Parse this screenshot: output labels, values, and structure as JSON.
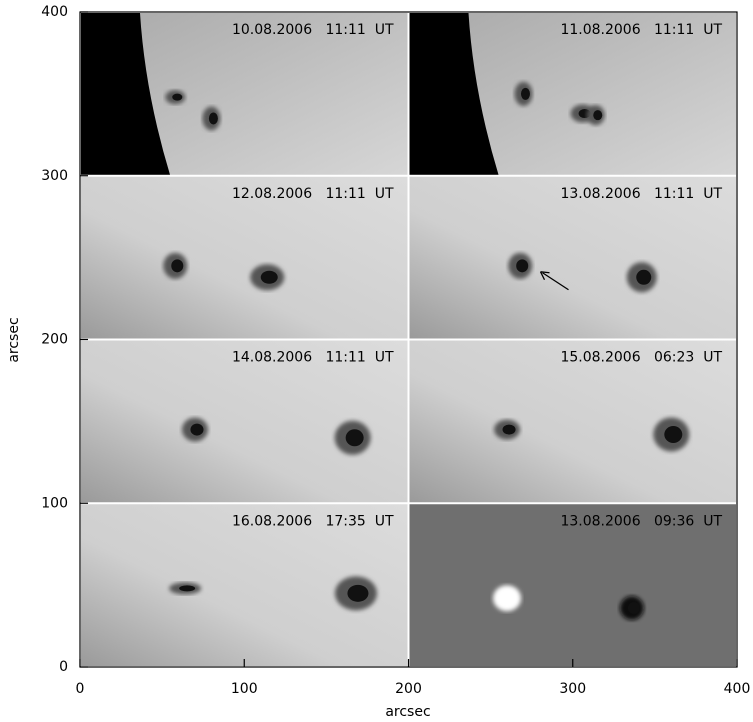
{
  "figure": {
    "xlabel": "arcsec",
    "ylabel": "arcsec",
    "xlim": [
      0,
      400
    ],
    "ylim": [
      0,
      400
    ],
    "xticks": [
      0,
      100,
      200,
      300,
      400
    ],
    "yticks": [
      0,
      100,
      200,
      300,
      400
    ],
    "panels": [
      {
        "label": "10.08.2006   11:11  UT"
      },
      {
        "label": "11.08.2006   11:11  UT"
      },
      {
        "label": "12.08.2006   11:11  UT"
      },
      {
        "label": "13.08.2006   11:11  UT"
      },
      {
        "label": "14.08.2006   11:11  UT"
      },
      {
        "label": "15.08.2006   06:23  UT"
      },
      {
        "label": "16.08.2006   17:35  UT"
      },
      {
        "label": "13.08.2006   09:36  UT"
      }
    ]
  }
}
